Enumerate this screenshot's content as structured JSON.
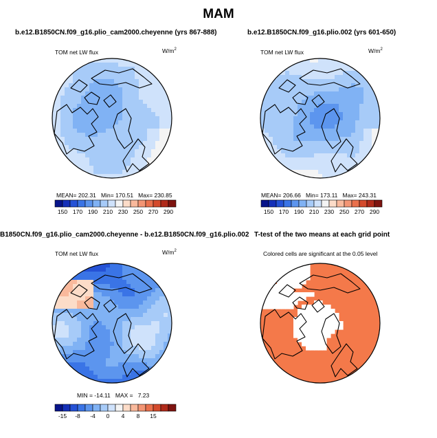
{
  "title": "MAM",
  "panels": [
    {
      "title": "b.e12.B1850CN.f09_g16.plio_cam2000.cheyenne (yrs 867-888)",
      "variable": "TOM net LW flux",
      "units_base": "W/m",
      "units_exp": "2",
      "stats": {
        "mean_label": "MEAN=",
        "mean": "202.31",
        "min_label": "Min=",
        "min": "170.51",
        "max_label": "Max=",
        "max": "230.85"
      }
    },
    {
      "title": "b.e12.B1850CN.f09_g16.plio.002 (yrs 601-650)",
      "variable": "TOM net LW flux",
      "units_base": "W/m",
      "units_exp": "2",
      "stats": {
        "mean_label": "MEAN=",
        "mean": "206.66",
        "min_label": "Min=",
        "min": "173.11",
        "max_label": "Max=",
        "max": "243.31"
      }
    },
    {
      "title": "B1850CN.f09_g16.plio_cam2000.cheyenne - b.e12.B1850CN.f09_g16.plio.002",
      "variable": "TOM net LW flux",
      "units_base": "W/m",
      "units_exp": "2",
      "stats": {
        "min_label": "MIN =",
        "min": "-14.11",
        "max_label": "MAX =",
        "max": "7.23"
      }
    },
    {
      "title": "T-test of the two means at each grid point",
      "note": "Colored cells are significant at the 0.05 level"
    }
  ],
  "chart_data": [
    {
      "type": "heatmap",
      "projection": "polar stereographic (north pole)",
      "title": "b.e12.B1850CN.f09_g16.plio_cam2000.cheyenne (yrs 867-888)",
      "variable": "TOM net LW flux",
      "units": "W/m2",
      "mean": 202.31,
      "min": 170.51,
      "max": 230.85,
      "colorbar": {
        "levels": [
          150,
          160,
          170,
          180,
          190,
          200,
          210,
          220,
          230,
          240,
          250,
          260,
          270,
          280,
          290,
          300
        ],
        "tick_labels": [
          "150",
          "170",
          "190",
          "210",
          "230",
          "250",
          "270",
          "290"
        ],
        "colors": [
          "#08148a",
          "#1530b8",
          "#2552d6",
          "#3a74e6",
          "#5c95ee",
          "#80b2f4",
          "#a7cbf8",
          "#cfe2fb",
          "#f4f4f4",
          "#fcdcc8",
          "#f9b99c",
          "#f39574",
          "#e9704c",
          "#d44a2c",
          "#b02a1a",
          "#7e1410"
        ]
      }
    },
    {
      "type": "heatmap",
      "projection": "polar stereographic (north pole)",
      "title": "b.e12.B1850CN.f09_g16.plio.002 (yrs 601-650)",
      "variable": "TOM net LW flux",
      "units": "W/m2",
      "mean": 206.66,
      "min": 173.11,
      "max": 243.31,
      "colorbar": {
        "levels": [
          150,
          160,
          170,
          180,
          190,
          200,
          210,
          220,
          230,
          240,
          250,
          260,
          270,
          280,
          290,
          300
        ],
        "tick_labels": [
          "150",
          "170",
          "190",
          "210",
          "230",
          "250",
          "270",
          "290"
        ],
        "colors": [
          "#08148a",
          "#1530b8",
          "#2552d6",
          "#3a74e6",
          "#5c95ee",
          "#80b2f4",
          "#a7cbf8",
          "#cfe2fb",
          "#f4f4f4",
          "#fcdcc8",
          "#f9b99c",
          "#f39574",
          "#e9704c",
          "#d44a2c",
          "#b02a1a",
          "#7e1410"
        ]
      }
    },
    {
      "type": "heatmap",
      "projection": "polar stereographic (north pole)",
      "title": "B1850CN.f09_g16.plio_cam2000.cheyenne - b.e12.B1850CN.f09_g16.plio.002",
      "variable": "TOM net LW flux",
      "units": "W/m2",
      "min": -14.11,
      "max": 7.23,
      "colorbar": {
        "levels": [
          -19,
          -17,
          -15,
          -13,
          -10,
          -8,
          -6,
          -4,
          -2,
          0,
          2,
          4,
          6,
          8,
          10,
          15,
          19
        ],
        "tick_labels": [
          "-15",
          "-8",
          "-4",
          "0",
          "4",
          "8",
          "15"
        ],
        "colors": [
          "#08148a",
          "#1530b8",
          "#2552d6",
          "#3a74e6",
          "#5c95ee",
          "#80b2f4",
          "#a7cbf8",
          "#cfe2fb",
          "#f4f4f4",
          "#fcdcc8",
          "#f9b99c",
          "#f39574",
          "#e9704c",
          "#d44a2c",
          "#b02a1a",
          "#7e1410"
        ]
      }
    },
    {
      "type": "heatmap",
      "projection": "polar stereographic (north pole)",
      "title": "T-test of the two means at each grid point",
      "note": "Colored cells are significant at the 0.05 level",
      "significant_color": "#f4794a",
      "insignificant_color": "#ffffff"
    }
  ]
}
